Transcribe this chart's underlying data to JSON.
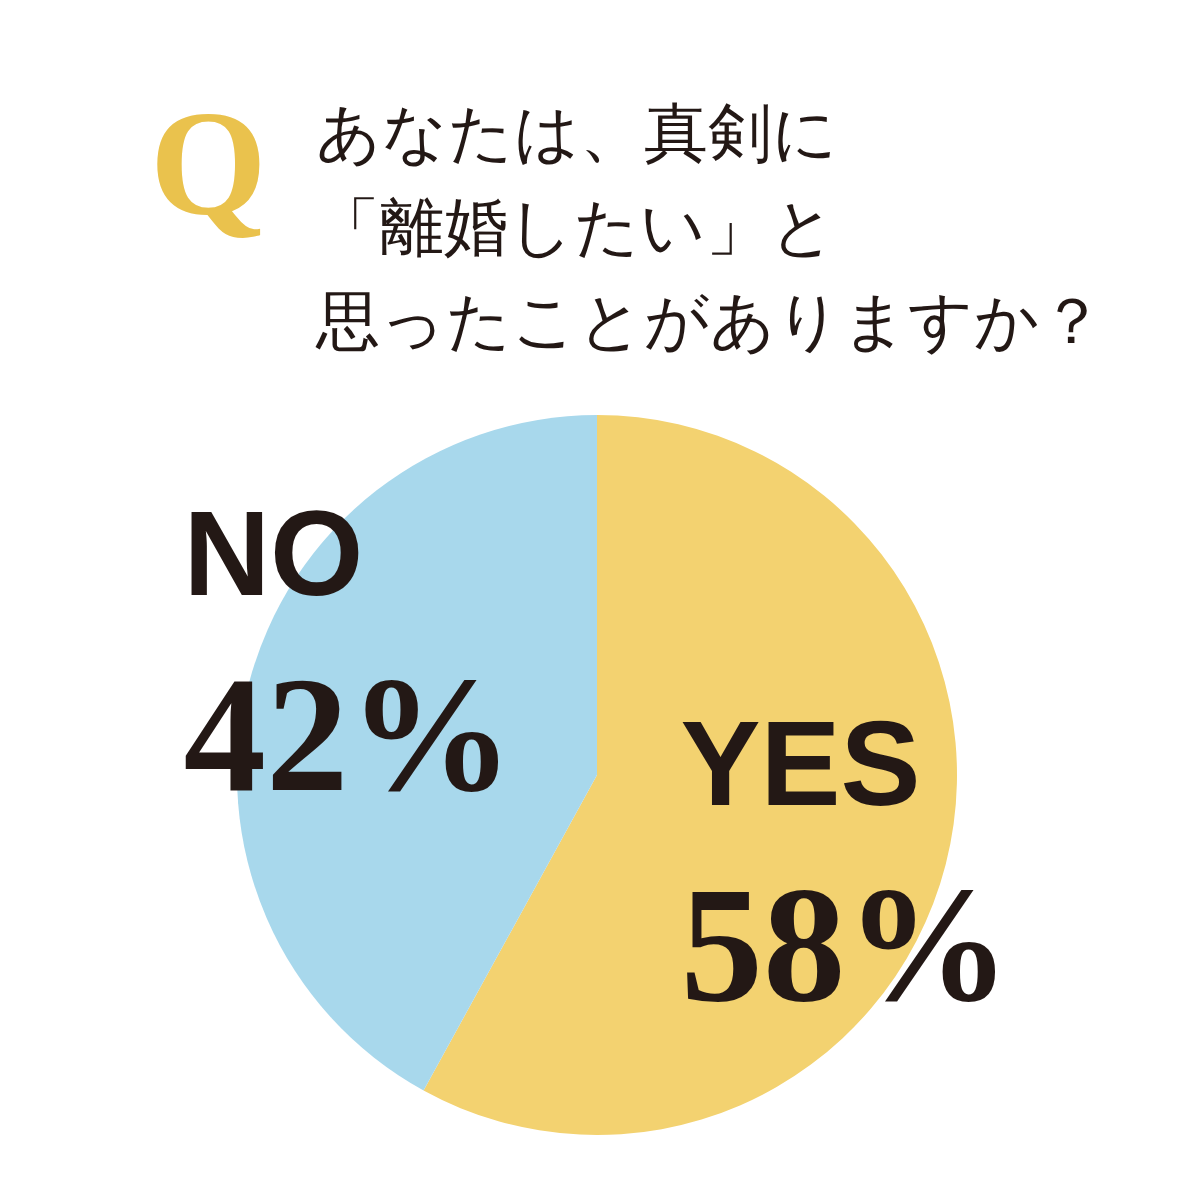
{
  "chart_data": {
    "type": "pie",
    "title": "あなたは、真剣に「離婚したい」と思ったことがありますか？",
    "annotations": [
      "Q"
    ],
    "categories": [
      "YES",
      "NO"
    ],
    "values": [
      58,
      42
    ],
    "value_labels": [
      "58%",
      "42%"
    ],
    "colors": [
      "#f3d270",
      "#a8d8ec"
    ]
  }
}
